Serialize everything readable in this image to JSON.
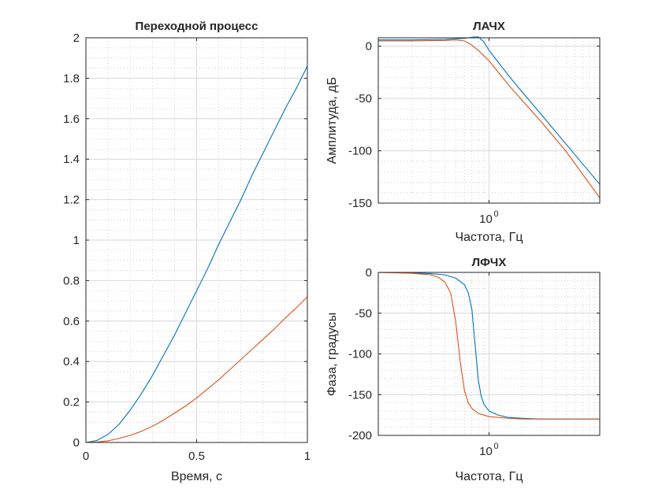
{
  "chart_data": [
    {
      "type": "line",
      "title": "Переходной процесс",
      "xlabel": "Время, с",
      "ylabel": "",
      "xlim": [
        0,
        1
      ],
      "ylim": [
        0,
        2
      ],
      "x_ticks": [
        0,
        0.5,
        1
      ],
      "x_tick_labels": [
        "0",
        "0.5",
        "1"
      ],
      "y_ticks": [
        0,
        0.2,
        0.4,
        0.6,
        0.8,
        1,
        1.2,
        1.4,
        1.6,
        1.8,
        2
      ],
      "y_tick_labels": [
        "0",
        "0.2",
        "0.4",
        "0.6",
        "0.8",
        "1",
        "1.2",
        "1.4",
        "1.6",
        "1.8",
        "2"
      ],
      "grid": true,
      "minor_grid": true,
      "series": [
        {
          "color": "#0072BD",
          "x": [
            0,
            0.05,
            0.1,
            0.15,
            0.2,
            0.25,
            0.3,
            0.35,
            0.4,
            0.45,
            0.5,
            0.55,
            0.6,
            0.65,
            0.7,
            0.75,
            0.8,
            0.85,
            0.9,
            0.95,
            1.0
          ],
          "y": [
            0,
            0.01,
            0.04,
            0.09,
            0.16,
            0.24,
            0.33,
            0.43,
            0.53,
            0.64,
            0.75,
            0.86,
            0.98,
            1.09,
            1.2,
            1.32,
            1.43,
            1.54,
            1.65,
            1.75,
            1.86
          ]
        },
        {
          "color": "#D95319",
          "x": [
            0,
            0.05,
            0.1,
            0.15,
            0.2,
            0.25,
            0.3,
            0.35,
            0.4,
            0.45,
            0.5,
            0.55,
            0.6,
            0.65,
            0.7,
            0.75,
            0.8,
            0.85,
            0.9,
            0.95,
            1.0
          ],
          "y": [
            0,
            0.002,
            0.008,
            0.02,
            0.035,
            0.055,
            0.08,
            0.11,
            0.145,
            0.18,
            0.22,
            0.265,
            0.31,
            0.36,
            0.41,
            0.46,
            0.51,
            0.56,
            0.615,
            0.665,
            0.72
          ]
        }
      ]
    },
    {
      "type": "line",
      "title": "ЛАЧХ",
      "xlabel": "Частота, Гц",
      "ylabel": "Амплитуда, дБ",
      "xscale": "log",
      "xlim": [
        0.1,
        10
      ],
      "ylim": [
        -150,
        8
      ],
      "x_ticks": [
        1
      ],
      "x_tick_labels": [
        "10^0"
      ],
      "y_ticks": [
        0,
        -50,
        -100,
        -150
      ],
      "y_tick_labels": [
        "0",
        "-50",
        "-100",
        "-150"
      ],
      "grid": true,
      "minor_grid": true,
      "series": [
        {
          "color": "#0072BD",
          "x": [
            0.1,
            0.2,
            0.4,
            0.6,
            0.7,
            0.8,
            0.9,
            1,
            1.5,
            2,
            3,
            5,
            10
          ],
          "y": [
            6,
            6,
            6.5,
            7.5,
            8.5,
            9,
            4,
            -4,
            -28,
            -44,
            -66,
            -94,
            -132
          ]
        },
        {
          "color": "#D95319",
          "x": [
            0.1,
            0.2,
            0.4,
            0.5,
            0.6,
            0.7,
            0.8,
            1,
            1.5,
            2,
            3,
            5,
            10
          ],
          "y": [
            5,
            5,
            5.5,
            6,
            5,
            1,
            -4,
            -14,
            -37,
            -52,
            -73,
            -101,
            -145
          ]
        }
      ]
    },
    {
      "type": "line",
      "title": "ЛФЧХ",
      "xlabel": "Частота, Гц",
      "ylabel": "Фаза, градусы",
      "xscale": "log",
      "xlim": [
        0.1,
        10
      ],
      "ylim": [
        -200,
        0
      ],
      "x_ticks": [
        1
      ],
      "x_tick_labels": [
        "10^0"
      ],
      "y_ticks": [
        0,
        -50,
        -100,
        -150,
        -200
      ],
      "y_tick_labels": [
        "0",
        "-50",
        "-100",
        "-150",
        "-200"
      ],
      "grid": true,
      "minor_grid": true,
      "series": [
        {
          "color": "#0072BD",
          "x": [
            0.1,
            0.2,
            0.3,
            0.4,
            0.5,
            0.6,
            0.65,
            0.7,
            0.75,
            0.8,
            0.85,
            0.9,
            1,
            1.2,
            1.5,
            2,
            3,
            5,
            10
          ],
          "y": [
            0,
            -0.5,
            -1.5,
            -3,
            -7,
            -15,
            -25,
            -45,
            -90,
            -132,
            -152,
            -162,
            -170,
            -175,
            -178,
            -179,
            -180,
            -180,
            -180
          ]
        },
        {
          "color": "#D95319",
          "x": [
            0.1,
            0.2,
            0.3,
            0.35,
            0.4,
            0.45,
            0.5,
            0.55,
            0.6,
            0.65,
            0.7,
            0.8,
            1,
            1.5,
            2,
            3,
            5,
            10
          ],
          "y": [
            0,
            -1,
            -3,
            -6,
            -12,
            -25,
            -60,
            -110,
            -145,
            -160,
            -167,
            -173,
            -177,
            -179,
            -180,
            -180,
            -180,
            -180
          ]
        }
      ]
    }
  ]
}
